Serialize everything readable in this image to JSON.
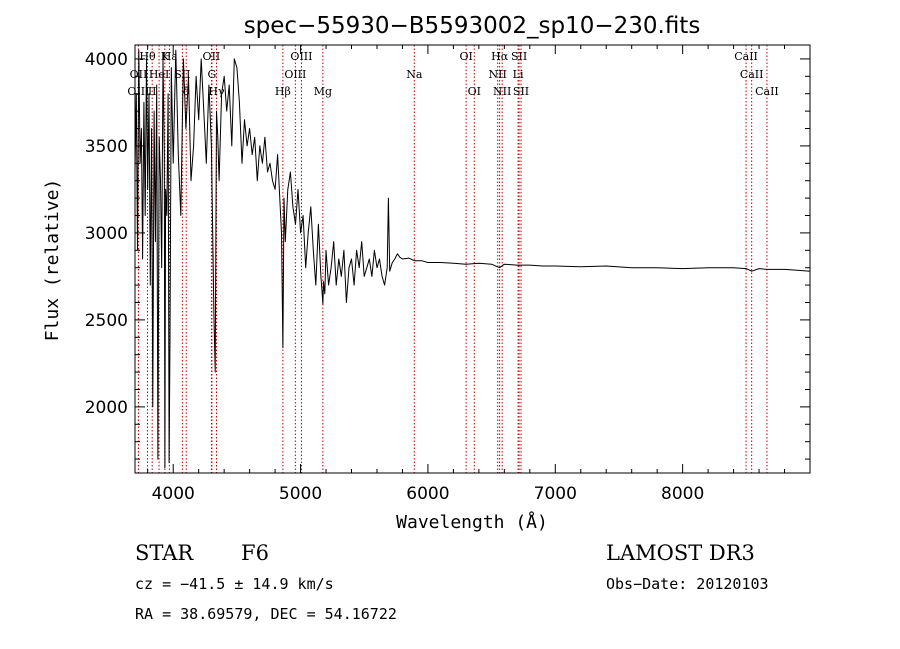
{
  "chart_data": {
    "type": "line",
    "title": "spec−55930−B5593002_sp10−230.fits",
    "xlabel": "Wavelength (Å)",
    "ylabel": "Flux (relative)",
    "xlim": [
      3700,
      9000
    ],
    "ylim": [
      1620,
      4080
    ],
    "x_ticks": [
      4000,
      5000,
      6000,
      7000,
      8000
    ],
    "y_ticks": [
      2000,
      2500,
      3000,
      3500,
      4000
    ],
    "series": [
      {
        "name": "flux",
        "x": [
          3700,
          3710,
          3720,
          3730,
          3740,
          3750,
          3760,
          3770,
          3780,
          3790,
          3800,
          3810,
          3820,
          3830,
          3840,
          3850,
          3860,
          3870,
          3880,
          3890,
          3900,
          3910,
          3920,
          3930,
          3935,
          3940,
          3950,
          3960,
          3968,
          3975,
          3985,
          4000,
          4020,
          4040,
          4060,
          4080,
          4100,
          4120,
          4140,
          4160,
          4180,
          4200,
          4220,
          4240,
          4260,
          4280,
          4300,
          4310,
          4320,
          4330,
          4340,
          4350,
          4360,
          4380,
          4400,
          4420,
          4440,
          4460,
          4480,
          4500,
          4520,
          4540,
          4560,
          4580,
          4600,
          4620,
          4640,
          4660,
          4680,
          4700,
          4720,
          4740,
          4760,
          4780,
          4800,
          4820,
          4840,
          4850,
          4861,
          4870,
          4880,
          4900,
          4920,
          4940,
          4960,
          4980,
          5000,
          5020,
          5040,
          5060,
          5080,
          5100,
          5120,
          5140,
          5160,
          5170,
          5175,
          5180,
          5190,
          5200,
          5220,
          5240,
          5260,
          5280,
          5300,
          5320,
          5340,
          5360,
          5380,
          5400,
          5420,
          5440,
          5460,
          5480,
          5500,
          5520,
          5540,
          5560,
          5580,
          5600,
          5620,
          5640,
          5660,
          5680,
          5690,
          5700,
          5720,
          5740,
          5760,
          5780,
          5800,
          5850,
          5893,
          5950,
          6000,
          6100,
          6200,
          6300,
          6400,
          6500,
          6563,
          6600,
          6700,
          6800,
          6900,
          7000,
          7200,
          7400,
          7600,
          7800,
          8000,
          8200,
          8400,
          8500,
          8542,
          8600,
          8662,
          8700,
          8800,
          8900,
          9000
        ],
        "values": [
          3350,
          3800,
          2900,
          4050,
          3400,
          3600,
          2850,
          3750,
          3100,
          4000,
          3250,
          3800,
          2700,
          3600,
          2000,
          3700,
          2950,
          3850,
          1700,
          3550,
          3300,
          2800,
          4000,
          3450,
          1650,
          3250,
          3100,
          3800,
          1680,
          2400,
          3950,
          3400,
          4050,
          3450,
          3100,
          4000,
          3600,
          3900,
          3300,
          3500,
          3900,
          3650,
          4000,
          3700,
          3400,
          3850,
          3500,
          3000,
          2500,
          2200,
          3700,
          3550,
          3300,
          3800,
          3900,
          3700,
          3850,
          3500,
          4000,
          3950,
          3750,
          3400,
          3650,
          3500,
          3600,
          3450,
          3550,
          3300,
          3500,
          3400,
          3550,
          3350,
          3400,
          3300,
          3250,
          3450,
          3150,
          3000,
          2340,
          3200,
          2950,
          3250,
          3350,
          3150,
          3050,
          3250,
          3000,
          3100,
          2800,
          3000,
          3150,
          2900,
          2700,
          3050,
          2750,
          2650,
          2590,
          2720,
          2650,
          2900,
          2700,
          2800,
          2950,
          2700,
          2850,
          2750,
          2900,
          2600,
          2800,
          2850,
          2700,
          2900,
          2800,
          2950,
          2750,
          2800,
          2850,
          2750,
          2900,
          2800,
          2850,
          2750,
          2700,
          2800,
          3200,
          2780,
          2830,
          2850,
          2880,
          2860,
          2850,
          2855,
          2840,
          2840,
          2830,
          2830,
          2825,
          2820,
          2825,
          2820,
          2800,
          2820,
          2815,
          2815,
          2810,
          2810,
          2805,
          2810,
          2800,
          2800,
          2795,
          2800,
          2800,
          2795,
          2780,
          2795,
          2790,
          2790,
          2790,
          2785,
          2780
        ]
      }
    ],
    "line_markers": [
      {
        "label": "Hθ",
        "x": 3798,
        "row": 1
      },
      {
        "label": "K",
        "x": 3934,
        "row": 1
      },
      {
        "label": "Hε",
        "x": 3970,
        "row": 1
      },
      {
        "label": "OII",
        "x": 4300,
        "row": 1
      },
      {
        "label": "OIII",
        "x": 5007,
        "row": 1
      },
      {
        "label": "OI",
        "x": 6300,
        "row": 1
      },
      {
        "label": "Hα",
        "x": 6563,
        "row": 1
      },
      {
        "label": "SII",
        "x": 6716,
        "row": 1
      },
      {
        "label": "CaII",
        "x": 8498,
        "row": 1
      },
      {
        "label": "OII",
        "x": 3727,
        "row": 2
      },
      {
        "label": "HeI",
        "x": 3889,
        "row": 2
      },
      {
        "label": "SII",
        "x": 4072,
        "row": 2
      },
      {
        "label": "G",
        "x": 4304,
        "row": 2
      },
      {
        "label": "OIII",
        "x": 4959,
        "row": 2
      },
      {
        "label": "NII",
        "x": 6548,
        "row": 2
      },
      {
        "label": "Li",
        "x": 6708,
        "row": 2
      },
      {
        "label": "CaII",
        "x": 8542,
        "row": 2
      },
      {
        "label": "OIII",
        "x": 3727,
        "row": 3
      },
      {
        "label": "Hγ",
        "x": 4340,
        "row": 3
      },
      {
        "label": "δ",
        "x": 4102,
        "row": 3
      },
      {
        "label": "II",
        "x": 3835,
        "row": 3
      },
      {
        "label": "Hβ",
        "x": 4861,
        "row": 3
      },
      {
        "label": "Mg",
        "x": 5175,
        "row": 3
      },
      {
        "label": "Na",
        "x": 5893,
        "row": 2
      },
      {
        "label": "OI",
        "x": 6364,
        "row": 3
      },
      {
        "label": "NII",
        "x": 6583,
        "row": 3
      },
      {
        "label": "SII",
        "x": 6731,
        "row": 3
      },
      {
        "label": "CaII",
        "x": 8662,
        "row": 3
      }
    ]
  },
  "info": {
    "object_class": "STAR",
    "subclass": "F6",
    "survey": "LAMOST DR3",
    "redshift": "cz = −41.5 ± 14.9 km/s",
    "obs_date": "Obs−Date: 20120103",
    "coords": "RA =  38.69579, DEC =  54.16722"
  },
  "colors": {
    "marker": "#cc0000",
    "spectrum": "#000000",
    "axes": "#000000"
  }
}
